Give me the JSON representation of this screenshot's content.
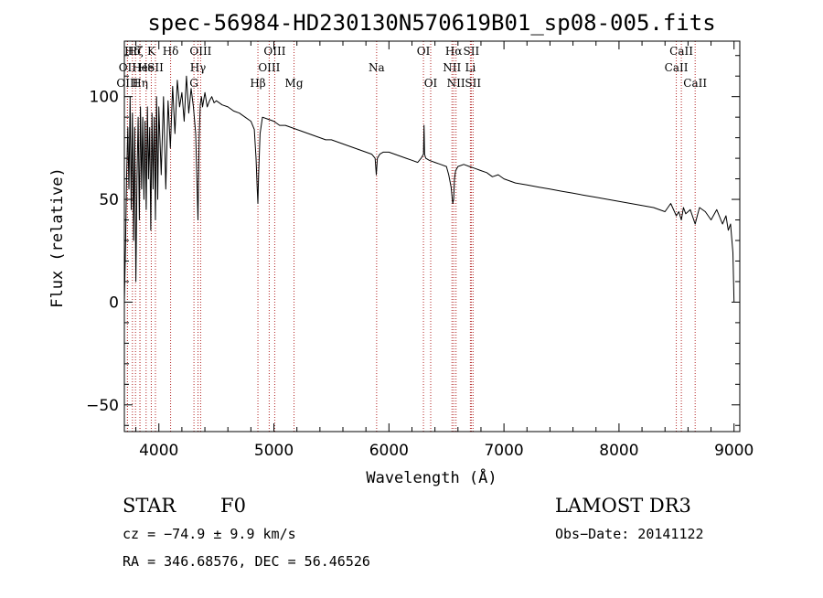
{
  "chart_data": {
    "type": "line",
    "title": "spec-56984-HD230130N570619B01_sp08-005.fits",
    "xlabel": "Wavelength (Å)",
    "ylabel": "Flux (relative)",
    "xlim": [
      3700,
      9050
    ],
    "ylim": [
      -63,
      127
    ],
    "xticks": [
      4000,
      5000,
      6000,
      7000,
      8000,
      9000
    ],
    "yticks": [
      -50,
      0,
      50,
      100
    ],
    "series": [
      {
        "name": "spectrum",
        "x": [
          3700,
          3710,
          3720,
          3730,
          3740,
          3750,
          3760,
          3770,
          3780,
          3790,
          3800,
          3810,
          3820,
          3830,
          3840,
          3850,
          3860,
          3870,
          3880,
          3890,
          3900,
          3910,
          3920,
          3930,
          3940,
          3950,
          3960,
          3970,
          3980,
          3990,
          4000,
          4020,
          4040,
          4060,
          4080,
          4100,
          4120,
          4140,
          4160,
          4180,
          4200,
          4220,
          4240,
          4260,
          4280,
          4300,
          4320,
          4330,
          4340,
          4350,
          4360,
          4370,
          4380,
          4400,
          4420,
          4440,
          4460,
          4480,
          4500,
          4550,
          4600,
          4650,
          4700,
          4750,
          4800,
          4830,
          4845,
          4855,
          4861,
          4867,
          4880,
          4900,
          4950,
          5000,
          5050,
          5100,
          5150,
          5200,
          5250,
          5300,
          5350,
          5400,
          5450,
          5500,
          5550,
          5600,
          5650,
          5700,
          5750,
          5800,
          5850,
          5880,
          5890,
          5900,
          5920,
          5950,
          6000,
          6050,
          6100,
          6150,
          6200,
          6250,
          6280,
          6300,
          6305,
          6310,
          6320,
          6350,
          6400,
          6450,
          6500,
          6520,
          6540,
          6555,
          6563,
          6570,
          6580,
          6600,
          6650,
          6700,
          6750,
          6800,
          6850,
          6900,
          6950,
          7000,
          7100,
          7200,
          7300,
          7400,
          7500,
          7600,
          7700,
          7800,
          7900,
          8000,
          8100,
          8200,
          8300,
          8400,
          8450,
          8498,
          8520,
          8542,
          8560,
          8580,
          8620,
          8662,
          8680,
          8700,
          8750,
          8800,
          8850,
          8900,
          8930,
          8950,
          8970,
          8990,
          9000
        ],
        "y": [
          0,
          28,
          62,
          85,
          55,
          100,
          45,
          92,
          30,
          85,
          10,
          60,
          90,
          40,
          95,
          55,
          90,
          50,
          88,
          45,
          95,
          60,
          85,
          35,
          92,
          55,
          90,
          40,
          100,
          50,
          95,
          62,
          100,
          55,
          98,
          75,
          105,
          82,
          108,
          95,
          102,
          88,
          110,
          92,
          104,
          95,
          82,
          60,
          40,
          80,
          96,
          100,
          95,
          102,
          95,
          98,
          100,
          97,
          98,
          96,
          95,
          93,
          92,
          90,
          88,
          84,
          70,
          55,
          48,
          62,
          82,
          90,
          89,
          88,
          86,
          86,
          85,
          84,
          83,
          82,
          81,
          80,
          79,
          79,
          78,
          77,
          76,
          75,
          74,
          73,
          72,
          70,
          62,
          70,
          72,
          73,
          73,
          72,
          71,
          70,
          69,
          68,
          70,
          72,
          86,
          72,
          70,
          69,
          68,
          67,
          66,
          62,
          56,
          48,
          50,
          60,
          64,
          66,
          67,
          66,
          65,
          64,
          63,
          61,
          62,
          60,
          58,
          57,
          56,
          55,
          54,
          53,
          52,
          51,
          50,
          49,
          48,
          47,
          46,
          44,
          48,
          42,
          44,
          40,
          46,
          43,
          45,
          38,
          42,
          46,
          44,
          40,
          45,
          38,
          42,
          35,
          38,
          24,
          0
        ]
      }
    ],
    "spectral_lines": [
      {
        "name": "OII",
        "wavelength": 3727,
        "row": 2
      },
      {
        "name": "OIII",
        "wavelength": 3727,
        "row": 3
      },
      {
        "name": "Hδ",
        "wavelength": 3770,
        "row": 1
      },
      {
        "name": "Hζ",
        "wavelength": 3797,
        "row": 1
      },
      {
        "name": "He",
        "wavelength": 3835,
        "row": 2
      },
      {
        "name": "Hη",
        "wavelength": 3836,
        "row": 3
      },
      {
        "name": "K",
        "wavelength": 3934,
        "row": 1
      },
      {
        "name": "He",
        "wavelength": 3889,
        "row": 2
      },
      {
        "name": "SII",
        "wavelength": 3970,
        "row": 2
      },
      {
        "name": "Hδ",
        "wavelength": 4102,
        "row": 1
      },
      {
        "name": "OIII",
        "wavelength": 4363,
        "row": 1
      },
      {
        "name": "Hγ",
        "wavelength": 4340,
        "row": 2
      },
      {
        "name": "G",
        "wavelength": 4305,
        "row": 3
      },
      {
        "name": "Hβ",
        "wavelength": 4861,
        "row": 3
      },
      {
        "name": "OIII",
        "wavelength": 4959,
        "row": 2
      },
      {
        "name": "OIII",
        "wavelength": 5007,
        "row": 1
      },
      {
        "name": "Mg",
        "wavelength": 5175,
        "row": 3
      },
      {
        "name": "Na",
        "wavelength": 5893,
        "row": 2
      },
      {
        "name": "OI",
        "wavelength": 6300,
        "row": 1
      },
      {
        "name": "OI",
        "wavelength": 6363,
        "row": 3
      },
      {
        "name": "Hα",
        "wavelength": 6563,
        "row": 1
      },
      {
        "name": "NII",
        "wavelength": 6548,
        "row": 2
      },
      {
        "name": "NII",
        "wavelength": 6583,
        "row": 3
      },
      {
        "name": "SII",
        "wavelength": 6716,
        "row": 1
      },
      {
        "name": "Li",
        "wavelength": 6708,
        "row": 2
      },
      {
        "name": "SII",
        "wavelength": 6731,
        "row": 3
      },
      {
        "name": "CaII",
        "wavelength": 8542,
        "row": 1
      },
      {
        "name": "CaII",
        "wavelength": 8498,
        "row": 2
      },
      {
        "name": "CaII",
        "wavelength": 8662,
        "row": 3
      }
    ]
  },
  "info": {
    "class": "STAR",
    "subclass": "F0",
    "survey": "LAMOST DR3",
    "cz": "cz = −74.9 ± 9.9 km/s",
    "obs_date": "Obs−Date: 20141122",
    "coords": "RA = 346.68576, DEC =  56.46526"
  },
  "colors": {
    "line_marker": "#b22222",
    "spectrum": "#000000"
  }
}
